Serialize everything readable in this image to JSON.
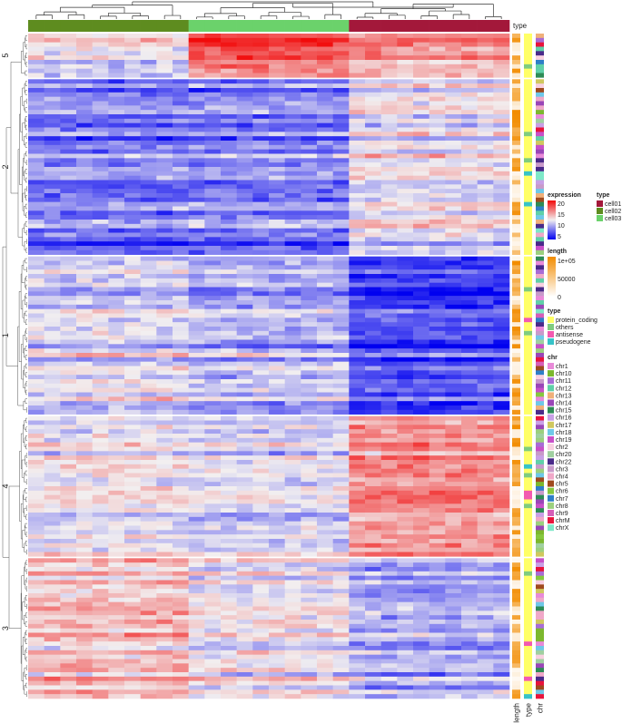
{
  "chart_data": {
    "type": "heatmap",
    "title": "",
    "n_samples": 30,
    "n_genes": 150,
    "column_annotation": {
      "name": "type",
      "groups": [
        {
          "label": "cell01",
          "count": 10,
          "color": "#A3183A"
        },
        {
          "label": "cell02",
          "count": 10,
          "color": "#5E8C1F"
        },
        {
          "label": "cell03",
          "count": 10,
          "color": "#6BD26B"
        }
      ],
      "display_order": [
        "cell02",
        "cell03",
        "cell01"
      ]
    },
    "expression": {
      "legend_title": "expression",
      "range": [
        5,
        20
      ],
      "ticks": [
        "20",
        "15",
        "10",
        "5"
      ],
      "colors": {
        "low": "#0000F0",
        "mid": "#F2EFF0",
        "high": "#F20A0A"
      }
    },
    "row_clusters": [
      {
        "label": "5",
        "n_rows": 10,
        "pattern": [
          15.5,
          12.5,
          17.5
        ]
      },
      {
        "label": "2",
        "n_rows": 40,
        "pattern": [
          12.2,
          8.8,
          9.0
        ]
      },
      {
        "label": "1",
        "n_rows": 36,
        "pattern": [
          7.2,
          11.6,
          10.5
        ]
      },
      {
        "label": "4",
        "n_rows": 32,
        "pattern": [
          15.6,
          12.4,
          11.7
        ]
      },
      {
        "label": "3",
        "n_rows": 32,
        "pattern": [
          10.2,
          14.0,
          12.4
        ]
      }
    ],
    "row_annotations": [
      {
        "name": "length",
        "legend_title": "length",
        "range": [
          0,
          100000
        ],
        "ticks": [
          "1e+05",
          "50000",
          "0"
        ],
        "low_color": "#FFFFFF",
        "high_color": "#F28C00"
      },
      {
        "name": "type",
        "legend_title": "type",
        "categories": [
          {
            "label": "protein_coding",
            "color": "#FFFF66"
          },
          {
            "label": "others",
            "color": "#7FCC7F"
          },
          {
            "label": "antisense",
            "color": "#F25AB0"
          },
          {
            "label": "pseudogene",
            "color": "#37C3C8"
          }
        ]
      },
      {
        "name": "chr",
        "legend_title": "chr",
        "categories": [
          {
            "label": "chr1",
            "color": "#E88AD8"
          },
          {
            "label": "chr10",
            "color": "#7CB82E"
          },
          {
            "label": "chr11",
            "color": "#A86CD6"
          },
          {
            "label": "chr12",
            "color": "#5FD0A8"
          },
          {
            "label": "chr13",
            "color": "#F0B07A"
          },
          {
            "label": "chr14",
            "color": "#9A46B8"
          },
          {
            "label": "chr15",
            "color": "#2E8C56"
          },
          {
            "label": "chr16",
            "color": "#C8A0E6"
          },
          {
            "label": "chr17",
            "color": "#D0C85E"
          },
          {
            "label": "chr18",
            "color": "#6FC8E8"
          },
          {
            "label": "chr19",
            "color": "#C850C8"
          },
          {
            "label": "chr2",
            "color": "#F8D0E0"
          },
          {
            "label": "chr20",
            "color": "#A0D0A0"
          },
          {
            "label": "chr22",
            "color": "#4A2A8A"
          },
          {
            "label": "chr3",
            "color": "#C89ACA"
          },
          {
            "label": "chr4",
            "color": "#F0A8C8"
          },
          {
            "label": "chr5",
            "color": "#A04A1E"
          },
          {
            "label": "chr6",
            "color": "#86C83E"
          },
          {
            "label": "chr7",
            "color": "#2E7FC8"
          },
          {
            "label": "chr8",
            "color": "#9CD07E"
          },
          {
            "label": "chr9",
            "color": "#D65EB8"
          },
          {
            "label": "chrM",
            "color": "#E8143C"
          },
          {
            "label": "chrX",
            "color": "#7EE8C8"
          }
        ]
      }
    ],
    "axis_labels_bottom": [
      "length",
      "type",
      "chr"
    ],
    "top_annotation_label": "type"
  }
}
